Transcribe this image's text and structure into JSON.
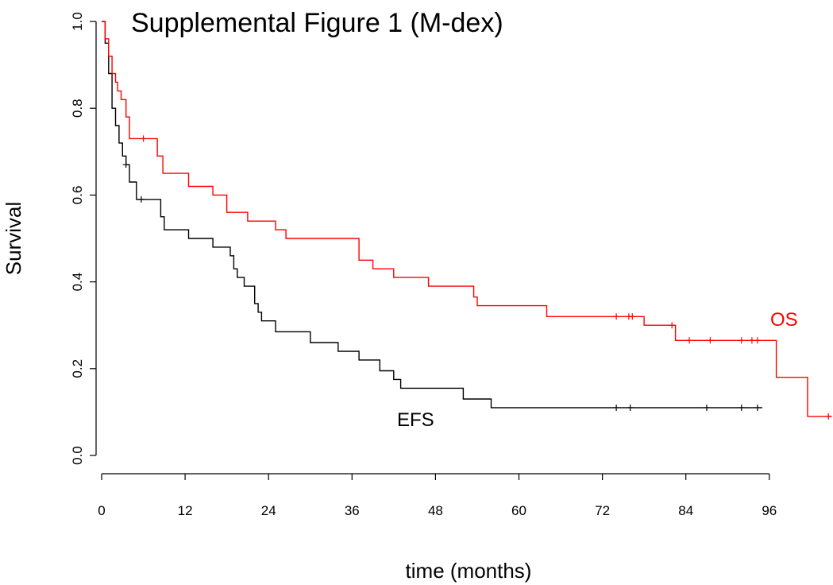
{
  "chart_data": {
    "type": "line",
    "title": "Supplemental Figure 1 (M-dex)",
    "xlabel": "time (months)",
    "ylabel": "Survival",
    "xlim": [
      0,
      105
    ],
    "ylim": [
      0,
      1
    ],
    "x_ticks": [
      0,
      12,
      24,
      36,
      48,
      60,
      72,
      84,
      96
    ],
    "y_ticks": [
      0.0,
      0.2,
      0.4,
      0.6,
      0.8,
      1.0
    ],
    "x_tick_labels": [
      "0",
      "12",
      "24",
      "36",
      "48",
      "60",
      "72",
      "84",
      "96"
    ],
    "y_tick_labels": [
      "0.0",
      "0.2",
      "0.4",
      "0.6",
      "0.8",
      "1.0"
    ],
    "grid": false,
    "series": [
      {
        "name": "OS",
        "color": "#ff0000",
        "step": true,
        "x": [
          0,
          0.5,
          1.0,
          1.5,
          2.0,
          2.3,
          2.8,
          3.5,
          4.0,
          8.0,
          8.8,
          12.5,
          16.0,
          18.0,
          21.0,
          25.0,
          26.5,
          37.0,
          39.0,
          42.0,
          47.0,
          53.5,
          54.0,
          64.0,
          78.0,
          82.5,
          97.0,
          101.5,
          105.0
        ],
        "y": [
          1.0,
          0.96,
          0.92,
          0.88,
          0.86,
          0.84,
          0.82,
          0.78,
          0.73,
          0.69,
          0.65,
          0.62,
          0.6,
          0.56,
          0.54,
          0.52,
          0.5,
          0.45,
          0.43,
          0.41,
          0.39,
          0.365,
          0.345,
          0.32,
          0.3,
          0.265,
          0.18,
          0.09,
          0.09
        ],
        "censor_x": [
          6.0,
          74.0,
          75.8,
          76.3,
          82.0,
          84.5,
          87.5,
          92.0,
          93.5,
          94.3,
          104.5
        ],
        "censor_y": [
          0.73,
          0.32,
          0.32,
          0.32,
          0.3,
          0.265,
          0.265,
          0.265,
          0.265,
          0.265,
          0.09
        ]
      },
      {
        "name": "EFS",
        "color": "#000000",
        "step": true,
        "x": [
          0,
          0.5,
          1.0,
          1.5,
          2.0,
          2.5,
          3.0,
          3.5,
          4.0,
          5.0,
          8.5,
          9.0,
          12.5,
          16.0,
          18.5,
          19.0,
          19.5,
          20.5,
          22.0,
          22.5,
          23.0,
          25.0,
          30.0,
          34.0,
          37.0,
          40.0,
          42.0,
          43.0,
          52.0,
          56.0,
          95.0
        ],
        "y": [
          1.0,
          0.95,
          0.88,
          0.8,
          0.76,
          0.72,
          0.69,
          0.67,
          0.63,
          0.59,
          0.55,
          0.52,
          0.5,
          0.48,
          0.46,
          0.43,
          0.41,
          0.39,
          0.35,
          0.33,
          0.31,
          0.285,
          0.26,
          0.24,
          0.22,
          0.195,
          0.175,
          0.155,
          0.13,
          0.11,
          0.11
        ],
        "censor_x": [
          3.5,
          5.7,
          74.0,
          76.0,
          87.0,
          92.0,
          94.3
        ],
        "censor_y": [
          0.67,
          0.59,
          0.11,
          0.11,
          0.11,
          0.11,
          0.11
        ]
      }
    ]
  }
}
